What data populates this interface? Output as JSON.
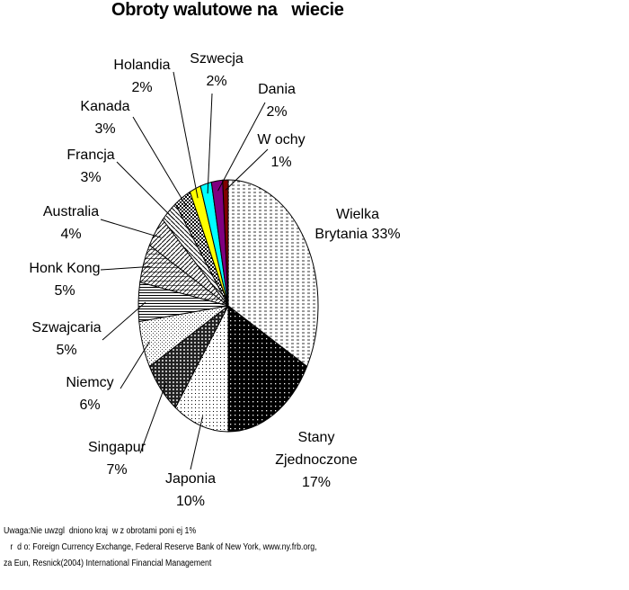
{
  "chart_data": {
    "type": "pie",
    "title": "Obroty walutowe na   wiecie",
    "slices": [
      {
        "label": [
          "Wielka",
          "Brytania 33%"
        ],
        "value": 33,
        "pattern": "hlines"
      },
      {
        "label": [
          "Stany",
          "Zjednoczone",
          "17%"
        ],
        "value": 17,
        "pattern": "dark-hatch"
      },
      {
        "label": [
          "Japonia",
          "10%"
        ],
        "value": 10,
        "pattern": "dots"
      },
      {
        "label": [
          "Singapur",
          "7%"
        ],
        "value": 7,
        "pattern": "dark-check"
      },
      {
        "label": [
          "Niemcy",
          "6%"
        ],
        "value": 6,
        "pattern": "dots-light"
      },
      {
        "label": [
          "Szwajcaria",
          "5%"
        ],
        "value": 5,
        "pattern": "hlines-dense"
      },
      {
        "label": [
          "Honk Kong",
          "5%"
        ],
        "value": 5,
        "pattern": "hatch-light"
      },
      {
        "label": [
          "Australia",
          "4%"
        ],
        "value": 4,
        "pattern": "diag"
      },
      {
        "label": [
          "Francja",
          "3%"
        ],
        "value": 3,
        "pattern": "diag-rev"
      },
      {
        "label": [
          "Kanada",
          "3%"
        ],
        "value": 3,
        "pattern": "check"
      },
      {
        "label": [
          "Holandia",
          "2%"
        ],
        "value": 2,
        "pattern": "solid",
        "color": "#ffff00"
      },
      {
        "label": [
          "Szwecja",
          "2%"
        ],
        "value": 2,
        "pattern": "solid",
        "color": "#00ffff"
      },
      {
        "label": [
          "Dania",
          "2%"
        ],
        "value": 2,
        "pattern": "solid",
        "color": "#800080"
      },
      {
        "label": [
          "W ochy",
          "1%"
        ],
        "value": 1,
        "pattern": "solid",
        "color": "#800000"
      }
    ]
  },
  "notes": {
    "line1": "Uwaga:Nie uwzgl  dniono kraj  w z obrotami poni ej 1%",
    "line2": "   r  d o: Foreign Currency Exchange, Federal Reserve Bank of New York, www.ny.frb.org,",
    "line3": "za Eun, Resnick(2004) International Financial Management"
  }
}
